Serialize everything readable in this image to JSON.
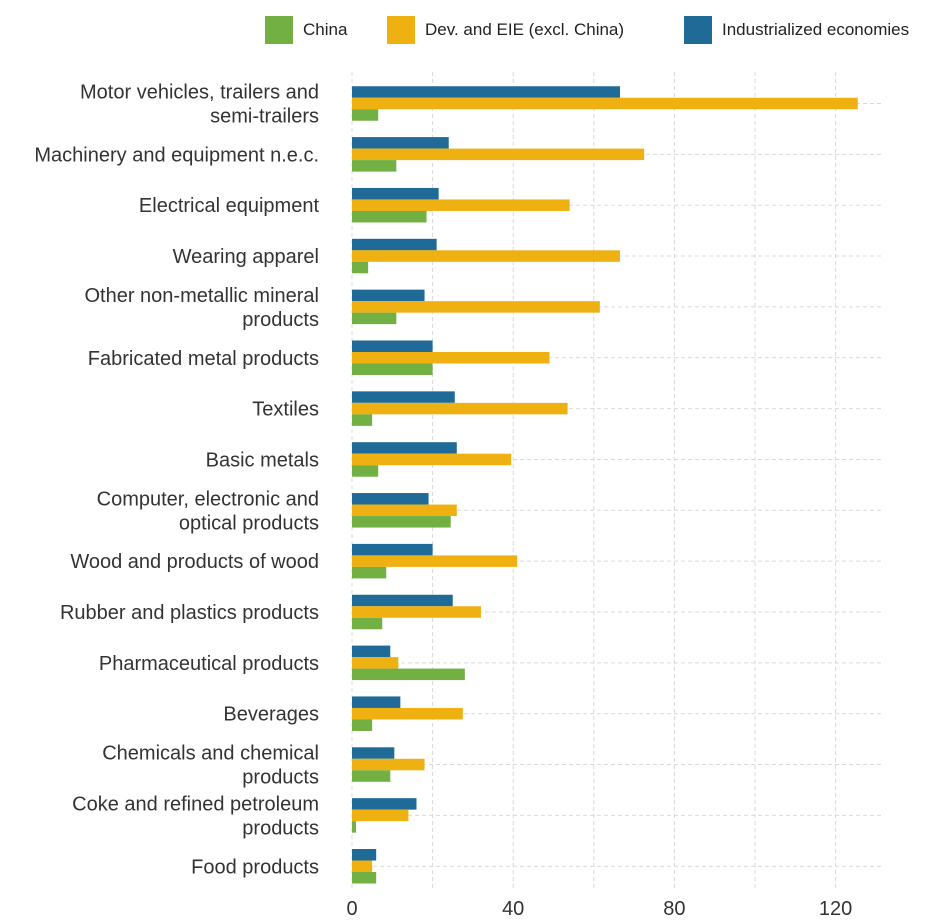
{
  "chart_data": {
    "type": "bar",
    "orientation": "horizontal",
    "categories": [
      [
        "Motor vehicles, trailers and",
        "semi-trailers"
      ],
      [
        "Machinery and equipment n.e.c."
      ],
      [
        "Electrical equipment"
      ],
      [
        "Wearing apparel"
      ],
      [
        "Other non-metallic mineral",
        "products"
      ],
      [
        "Fabricated metal products"
      ],
      [
        "Textiles"
      ],
      [
        "Basic metals"
      ],
      [
        "Computer, electronic and",
        "optical products"
      ],
      [
        "Wood and products of wood"
      ],
      [
        "Rubber and plastics products"
      ],
      [
        "Pharmaceutical products"
      ],
      [
        "Beverages"
      ],
      [
        "Chemicals and chemical",
        "products"
      ],
      [
        "Coke and refined petroleum",
        "products"
      ],
      [
        "Food products"
      ]
    ],
    "series": [
      {
        "name": "Industrialized economies",
        "color": "#1f6a96",
        "values": [
          66.5,
          24,
          21.5,
          21,
          18,
          20,
          25.5,
          26,
          19,
          20,
          25,
          9.5,
          12,
          10.5,
          16,
          6
        ]
      },
      {
        "name": "Dev. and EIE (excl. China)",
        "color": "#eeb111",
        "values": [
          125.5,
          72.5,
          54,
          66.5,
          61.5,
          49,
          53.5,
          39.5,
          26,
          41,
          32,
          11.5,
          27.5,
          18,
          14,
          5
        ]
      },
      {
        "name": "China",
        "color": "#72b043",
        "values": [
          6.5,
          11,
          18.5,
          4,
          11,
          20,
          5,
          6.5,
          24.5,
          8.5,
          7.5,
          28,
          5,
          9.5,
          1,
          6
        ]
      }
    ],
    "legend_order": [
      "China",
      "Dev. and EIE (excl. China)",
      "Industrialized economies"
    ],
    "xlim": [
      0,
      132
    ],
    "xticks": [
      0,
      40,
      80,
      120
    ],
    "grid": true,
    "legend_position": "top",
    "title": "",
    "xlabel": "",
    "ylabel": ""
  }
}
